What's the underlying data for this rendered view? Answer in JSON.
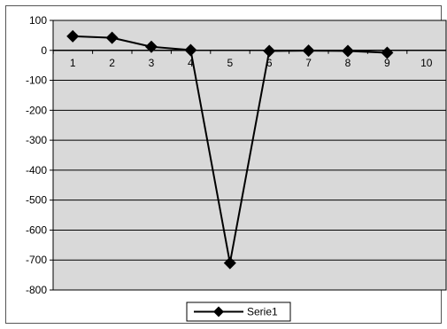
{
  "chart_data": {
    "type": "line",
    "x": [
      1,
      2,
      3,
      4,
      5,
      6,
      7,
      8,
      9
    ],
    "x_ticks": [
      "1",
      "2",
      "3",
      "4",
      "5",
      "6",
      "7",
      "8",
      "9",
      "10"
    ],
    "series": [
      {
        "name": "Serie1",
        "values": [
          47,
          42,
          12,
          1,
          -710,
          -2,
          -1,
          -2,
          -8
        ]
      }
    ],
    "y_ticks": [
      "100",
      "0",
      "-100",
      "-200",
      "-300",
      "-400",
      "-500",
      "-600",
      "-700",
      "-800"
    ],
    "ylim": [
      -800,
      100
    ],
    "xlim": [
      0.5,
      10.5
    ],
    "grid": true,
    "legend": "bottom-center",
    "colors": {
      "line": "#000000",
      "plot_background": "#d9d9d9",
      "gridline": "#000000"
    }
  }
}
